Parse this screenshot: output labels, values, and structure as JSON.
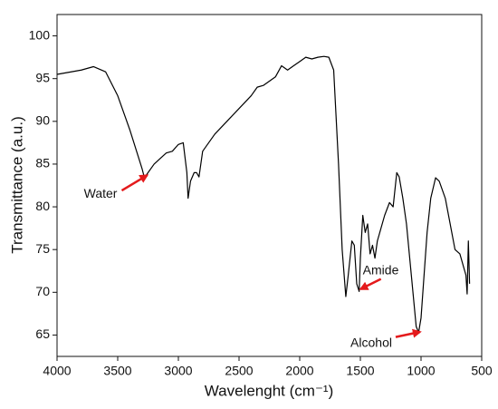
{
  "chart_data": {
    "type": "line",
    "xlabel": "Wavelenght (cm⁻¹)",
    "ylabel": "Transmittance (a.u.)",
    "color": "#000000",
    "xlim": [
      4000,
      500
    ],
    "ylim": [
      62.5,
      102.5
    ],
    "xticks": [
      4000,
      3500,
      3000,
      2500,
      2000,
      1500,
      1000,
      500
    ],
    "yticks": [
      65,
      70,
      75,
      80,
      85,
      90,
      95,
      100
    ],
    "x": [
      4000,
      3800,
      3700,
      3600,
      3500,
      3400,
      3300,
      3280,
      3200,
      3100,
      3050,
      3000,
      2960,
      2930,
      2920,
      2900,
      2870,
      2850,
      2830,
      2800,
      2700,
      2600,
      2500,
      2400,
      2350,
      2300,
      2200,
      2150,
      2100,
      2050,
      2000,
      1950,
      1900,
      1850,
      1800,
      1760,
      1720,
      1680,
      1650,
      1620,
      1600,
      1570,
      1550,
      1530,
      1510,
      1500,
      1480,
      1460,
      1440,
      1420,
      1400,
      1380,
      1360,
      1300,
      1260,
      1230,
      1200,
      1180,
      1150,
      1120,
      1080,
      1040,
      1020,
      1000,
      980,
      950,
      920,
      880,
      850,
      800,
      760,
      720,
      680,
      650,
      630,
      620,
      610,
      600
    ],
    "values": [
      95.5,
      96,
      96.4,
      95.8,
      93,
      89,
      84.5,
      83.4,
      85,
      86.3,
      86.5,
      87.3,
      87.5,
      84,
      81,
      83,
      84,
      84,
      83.5,
      86.5,
      88.5,
      90,
      91.5,
      93,
      94,
      94.2,
      95.2,
      96.5,
      96,
      96.5,
      97,
      97.5,
      97.3,
      97.5,
      97.6,
      97.5,
      96,
      85,
      75,
      69.5,
      72,
      76,
      75.5,
      71,
      70.1,
      74,
      79,
      77,
      78,
      74.5,
      75.5,
      74,
      76,
      79,
      80.5,
      80,
      84,
      83.5,
      81,
      78,
      72,
      66,
      65.3,
      67,
      71,
      77,
      81,
      83.4,
      83,
      81,
      78,
      75,
      74.5,
      73,
      72,
      69.8,
      76,
      71
    ],
    "annotations": [
      {
        "text": "Water",
        "x": 3280,
        "y": 83.5
      },
      {
        "text": "Amide",
        "x": 1480,
        "y": 70.5
      },
      {
        "text": "Alcohol",
        "x": 1030,
        "y": 65.3
      }
    ]
  }
}
